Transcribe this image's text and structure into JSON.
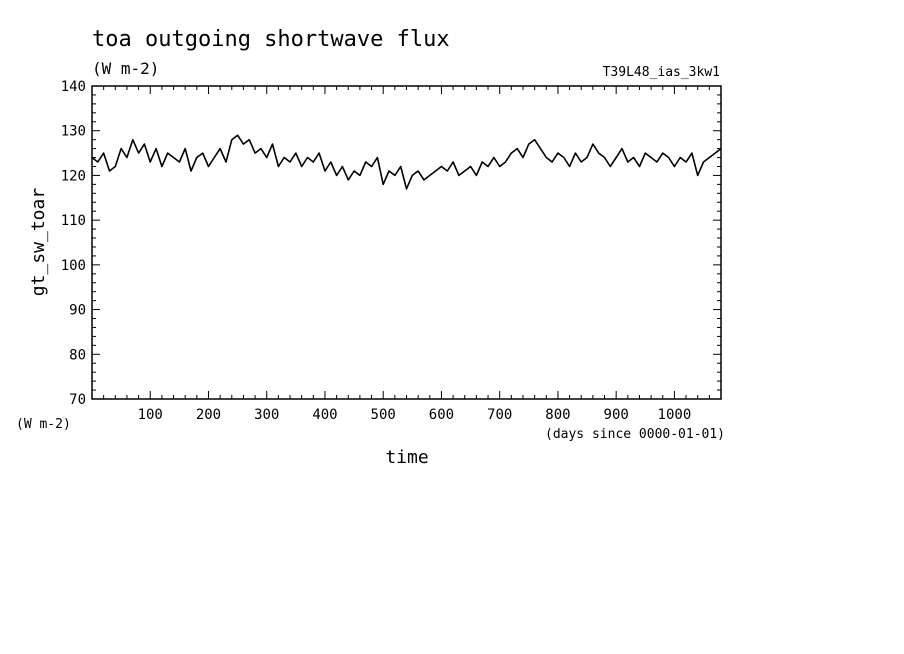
{
  "chart_data": {
    "type": "line",
    "title": "toa outgoing shortwave flux",
    "units": "(W m-2)",
    "run_label": "T39L48_ias_3kw1",
    "ylabel": "gt_sw_toar",
    "ylabel_units": "(W m-2)",
    "xlabel": "time",
    "xlabel_units": "(days since 0000-01-01)",
    "xlim": [
      0,
      1080
    ],
    "ylim": [
      70,
      140
    ],
    "xticks": [
      100,
      200,
      300,
      400,
      500,
      600,
      700,
      800,
      900,
      1000
    ],
    "yticks": [
      70,
      80,
      90,
      100,
      110,
      120,
      130,
      140
    ],
    "grid": false,
    "series": [
      {
        "x": [
          0,
          10,
          20,
          30,
          40,
          50,
          60,
          70,
          80,
          90,
          100,
          110,
          120,
          130,
          140,
          150,
          160,
          170,
          180,
          190,
          200,
          210,
          220,
          230,
          240,
          250,
          260,
          270,
          280,
          290,
          300,
          310,
          320,
          330,
          340,
          350,
          360,
          370,
          380,
          390,
          400,
          410,
          420,
          430,
          440,
          450,
          460,
          470,
          480,
          490,
          500,
          510,
          520,
          530,
          540,
          550,
          560,
          570,
          580,
          590,
          600,
          610,
          620,
          630,
          640,
          650,
          660,
          670,
          680,
          690,
          700,
          710,
          720,
          730,
          740,
          750,
          760,
          770,
          780,
          790,
          800,
          810,
          820,
          830,
          840,
          850,
          860,
          870,
          880,
          890,
          900,
          910,
          920,
          930,
          940,
          950,
          960,
          970,
          980,
          990,
          1000,
          1010,
          1020,
          1030,
          1040,
          1050,
          1060,
          1070,
          1080
        ],
        "values": [
          124,
          123,
          125,
          121,
          122,
          126,
          124,
          128,
          125,
          127,
          123,
          126,
          122,
          125,
          124,
          123,
          126,
          121,
          124,
          125,
          122,
          124,
          126,
          123,
          128,
          129,
          127,
          128,
          125,
          126,
          124,
          127,
          122,
          124,
          123,
          125,
          122,
          124,
          123,
          125,
          121,
          123,
          120,
          122,
          119,
          121,
          120,
          123,
          122,
          124,
          118,
          121,
          120,
          122,
          117,
          120,
          121,
          119,
          120,
          121,
          122,
          121,
          123,
          120,
          121,
          122,
          120,
          123,
          122,
          124,
          122,
          123,
          125,
          126,
          124,
          127,
          128,
          126,
          124,
          123,
          125,
          124,
          122,
          125,
          123,
          124,
          127,
          125,
          124,
          122,
          124,
          126,
          123,
          124,
          122,
          125,
          124,
          123,
          125,
          124,
          122,
          124,
          123,
          125,
          120,
          123,
          124,
          125,
          126
        ]
      }
    ]
  }
}
